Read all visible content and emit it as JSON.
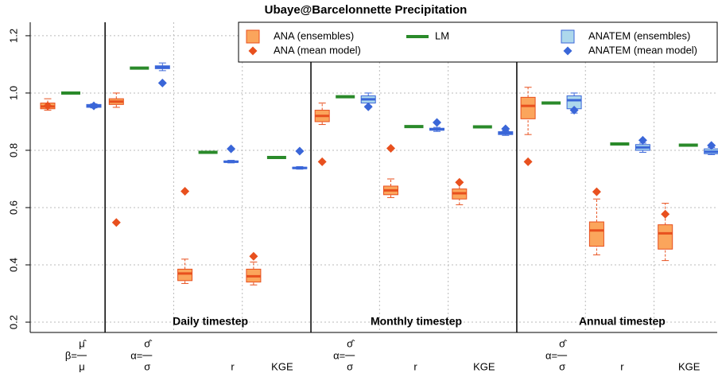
{
  "chart_data": {
    "type": "box",
    "title": "Ubaye@Barcelonnette Precipitation",
    "categories": [
      {
        "prefix": "β=",
        "numerator": "μ̂",
        "denominator": "μ"
      },
      {
        "prefix": "α=",
        "numerator": "σ̂",
        "denominator": "σ"
      },
      "r",
      "KGE",
      {
        "prefix": "α=",
        "numerator": "σ̂",
        "denominator": "σ"
      },
      "r",
      "KGE",
      {
        "prefix": "α=",
        "numerator": "σ̂",
        "denominator": "σ"
      },
      "r",
      "KGE"
    ],
    "group_labels": [
      "Daily timestep",
      "Monthly timestep",
      "Annual timestep"
    ],
    "ylim": [
      0.164,
      1.247
    ],
    "yticks": [
      0.2,
      0.4,
      0.6,
      0.8,
      {
        "value": 1,
        "label": "1.0"
      },
      1.2
    ],
    "grid": true,
    "legend": "top-right",
    "series": [
      {
        "name": "ANA (ensembles)",
        "kind": "box",
        "color": "#fba55c",
        "stroke": "#e8501e",
        "whislo": [
          0.94,
          0.95,
          0.335,
          0.33,
          0.89,
          0.635,
          0.61,
          0.855,
          0.435,
          0.415
        ],
        "q1": [
          0.945,
          0.96,
          0.345,
          0.34,
          0.9,
          0.645,
          0.63,
          0.91,
          0.465,
          0.455
        ],
        "median": [
          0.953,
          0.97,
          0.37,
          0.36,
          0.92,
          0.66,
          0.65,
          0.955,
          0.52,
          0.51
        ],
        "q3": [
          0.965,
          0.98,
          0.385,
          0.385,
          0.94,
          0.675,
          0.665,
          0.985,
          0.55,
          0.54
        ],
        "whishi": [
          0.98,
          1.0,
          0.42,
          0.41,
          0.965,
          0.7,
          0.69,
          1.02,
          0.63,
          0.615
        ]
      },
      {
        "name": "ANA (mean model)",
        "kind": "diamond",
        "color": "#e8501e",
        "values": [
          0.955,
          0.548,
          0.657,
          0.43,
          0.76,
          0.807,
          0.688,
          0.76,
          0.655,
          0.577
        ]
      },
      {
        "name": "LM",
        "kind": "line",
        "color": "#2a8a2a",
        "values": [
          1.0,
          1.087,
          0.793,
          0.775,
          0.987,
          0.883,
          0.882,
          0.965,
          0.822,
          0.818
        ]
      },
      {
        "name": "ANATEM (ensembles)",
        "kind": "box",
        "color": "#add8ec",
        "stroke": "#3a66d8",
        "whislo": [
          0.948,
          1.078,
          0.756,
          0.734,
          0.955,
          0.866,
          0.852,
          0.93,
          0.793,
          0.785
        ],
        "q1": [
          0.95,
          1.085,
          0.758,
          0.736,
          0.965,
          0.87,
          0.855,
          0.945,
          0.8,
          0.788
        ],
        "median": [
          0.955,
          1.09,
          0.76,
          0.738,
          0.978,
          0.873,
          0.86,
          0.975,
          0.81,
          0.795
        ],
        "q3": [
          0.96,
          1.095,
          0.763,
          0.741,
          0.99,
          0.877,
          0.865,
          0.99,
          0.82,
          0.805
        ],
        "whishi": [
          0.962,
          1.105,
          0.765,
          0.743,
          1.0,
          0.88,
          0.868,
          1.0,
          0.825,
          0.81
        ]
      },
      {
        "name": "ANATEM (mean model)",
        "kind": "diamond",
        "color": "#3a66d8",
        "values": [
          0.955,
          1.035,
          0.805,
          0.797,
          0.952,
          0.897,
          0.875,
          0.94,
          0.835,
          0.817
        ]
      }
    ]
  }
}
